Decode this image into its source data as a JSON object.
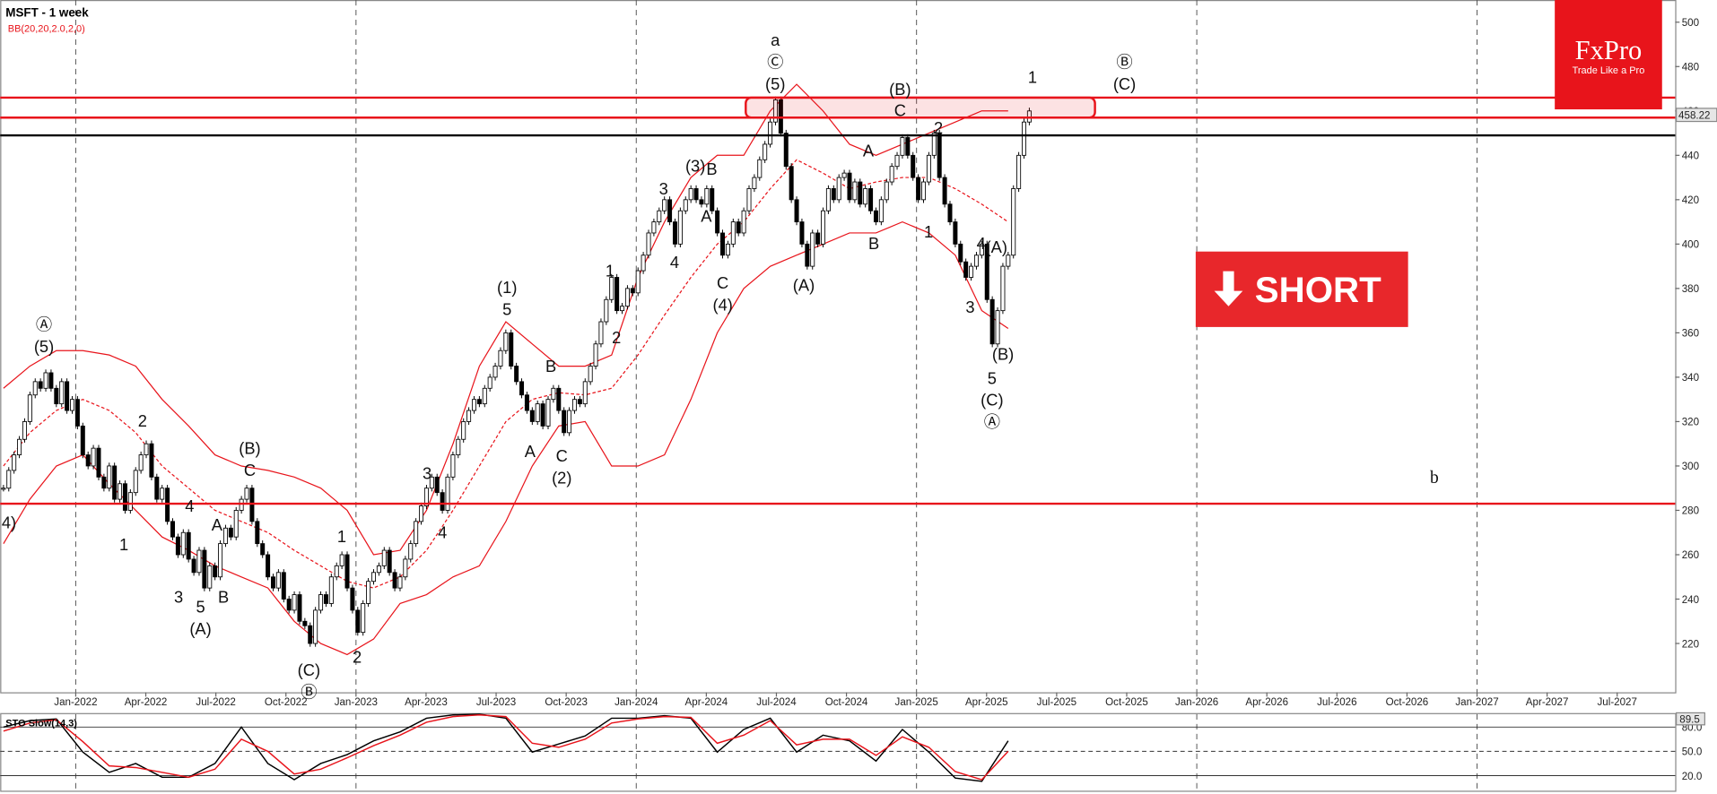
{
  "header": {
    "title": "MSFT - 1 week",
    "indicator": "BB(20,20,2.0,2,0)"
  },
  "logo": {
    "brand": "FxPro",
    "tagline": "Trade Like a Pro"
  },
  "signal": "SHORT",
  "chart_data": [
    {
      "type": "candlestick",
      "closes": [
        290,
        298,
        305,
        312,
        320,
        332,
        338,
        335,
        342,
        335,
        328,
        338,
        325,
        330,
        318,
        305,
        300,
        308,
        295,
        290,
        300,
        285,
        292,
        280,
        288,
        298,
        305,
        310,
        295,
        285,
        290,
        275,
        268,
        260,
        270,
        258,
        252,
        262,
        245,
        255,
        250,
        265,
        272,
        268,
        280,
        285,
        290,
        275,
        265,
        260,
        250,
        245,
        252,
        240,
        235,
        242,
        230,
        228,
        220,
        235,
        242,
        238,
        250,
        255,
        260,
        245,
        235,
        225,
        238,
        248,
        252,
        255,
        262,
        252,
        245,
        250,
        258,
        265,
        275,
        282,
        290,
        295,
        288,
        280,
        295,
        305,
        312,
        320,
        325,
        330,
        328,
        335,
        340,
        345,
        352,
        360,
        345,
        338,
        332,
        325,
        320,
        328,
        318,
        330,
        335,
        325,
        315,
        325,
        330,
        328,
        338,
        345,
        355,
        365,
        375,
        385,
        370,
        372,
        380,
        378,
        388,
        395,
        405,
        410,
        415,
        420,
        410,
        400,
        415,
        420,
        425,
        420,
        418,
        425,
        415,
        405,
        395,
        400,
        410,
        405,
        415,
        425,
        430,
        438,
        445,
        455,
        465,
        450,
        435,
        420,
        410,
        400,
        390,
        405,
        400,
        415,
        425,
        420,
        430,
        432,
        420,
        428,
        418,
        425,
        415,
        410,
        420,
        428,
        435,
        440,
        448,
        440,
        430,
        420,
        428,
        440,
        450,
        430,
        418,
        410,
        400,
        392,
        385,
        390,
        395,
        400,
        375,
        355,
        370,
        390,
        395,
        425,
        440,
        455,
        460
      ],
      "bollinger": {
        "upper": [
          335,
          345,
          352,
          352,
          350,
          345,
          330,
          318,
          305,
          300,
          298,
          295,
          290,
          280,
          260,
          262,
          280,
          310,
          345,
          365,
          355,
          345,
          345,
          350,
          385,
          410,
          430,
          440,
          440,
          460,
          472,
          460,
          445,
          440,
          445,
          450,
          455,
          460,
          460
        ],
        "middle": [
          300,
          315,
          325,
          330,
          325,
          315,
          300,
          290,
          280,
          275,
          270,
          262,
          255,
          248,
          245,
          250,
          262,
          280,
          300,
          320,
          330,
          333,
          332,
          335,
          350,
          368,
          385,
          400,
          410,
          425,
          438,
          432,
          425,
          428,
          430,
          430,
          425,
          418,
          410
        ],
        "lower": [
          265,
          285,
          300,
          305,
          292,
          280,
          268,
          262,
          255,
          250,
          245,
          230,
          220,
          215,
          222,
          238,
          242,
          250,
          255,
          275,
          300,
          318,
          320,
          300,
          300,
          305,
          330,
          360,
          380,
          390,
          395,
          400,
          405,
          405,
          410,
          405,
          395,
          370,
          362
        ]
      },
      "ylim": [
        198,
        510
      ],
      "yticks": [
        220,
        240,
        260,
        280,
        300,
        320,
        340,
        360,
        380,
        400,
        420,
        440,
        460,
        480,
        500
      ],
      "x_labels": [
        "Jan-2022",
        "Apr-2022",
        "Jul-2022",
        "Oct-2022",
        "Jan-2023",
        "Apr-2023",
        "Jul-2023",
        "Oct-2023",
        "Jan-2024",
        "Apr-2024",
        "Jul-2024",
        "Oct-2024",
        "Jan-2025",
        "Apr-2025",
        "Jul-2025",
        "Oct-2025",
        "Jan-2026",
        "Apr-2026",
        "Jul-2026",
        "Oct-2026",
        "Jan-2027",
        "Apr-2027",
        "Jul-2027"
      ],
      "levels": [
        {
          "value": 466,
          "color": "#e8141b"
        },
        {
          "value": 457,
          "color": "#e8141b"
        },
        {
          "value": 449,
          "color": "#000000"
        },
        {
          "value": 283,
          "color": "#e8141b"
        }
      ],
      "zone": [
        457,
        466
      ],
      "last_price": {
        "value": 458.22,
        "label": "458.22"
      },
      "annotations": [
        "a",
        "Ⓒ",
        "(5)",
        "(B)",
        "C",
        "1",
        "Ⓑ",
        "(C)",
        "A",
        "2",
        "(3)",
        "B",
        "3",
        "A",
        "4",
        "1",
        "B",
        "4",
        "(A)",
        "(A)",
        "C",
        "(4)",
        "1",
        "2",
        "3",
        "(B)",
        "5",
        "(C)",
        "Ⓐ",
        "(1)",
        "5",
        "B",
        "A",
        "C",
        "(2)",
        "3",
        "4",
        "1",
        "2",
        "(C)",
        "Ⓑ",
        "Ⓐ",
        "(5)",
        "2",
        "(B)",
        "C",
        "4",
        "A",
        "1",
        "3",
        "5",
        "B",
        "(A)",
        "4)",
        "b"
      ]
    },
    {
      "type": "line",
      "title": "STO Slow(14,3)",
      "series": [
        {
          "name": "K",
          "color": "#000000",
          "values": [
            80,
            88,
            90,
            49,
            24,
            35,
            18,
            18,
            35,
            80,
            35,
            15,
            35,
            46,
            63,
            74,
            91,
            95,
            96,
            91,
            49,
            59,
            69,
            91,
            91,
            94,
            91,
            49,
            77,
            91,
            49,
            70,
            63,
            38,
            77,
            49,
            17,
            13,
            63
          ]
        },
        {
          "name": "D",
          "color": "#e8141b",
          "values": [
            75,
            85,
            89,
            62,
            32,
            30,
            24,
            18,
            28,
            65,
            50,
            22,
            28,
            42,
            57,
            70,
            86,
            93,
            95,
            93,
            60,
            55,
            65,
            85,
            90,
            93,
            92,
            60,
            70,
            88,
            58,
            65,
            65,
            45,
            68,
            55,
            25,
            15,
            50
          ]
        }
      ],
      "ylim": [
        0,
        100
      ],
      "yticks": [
        {
          "value": 80,
          "label": "80.0"
        },
        {
          "value": 50,
          "label": "50.0"
        },
        {
          "value": 20,
          "label": "20.0"
        }
      ],
      "last_value": 89.5
    }
  ]
}
